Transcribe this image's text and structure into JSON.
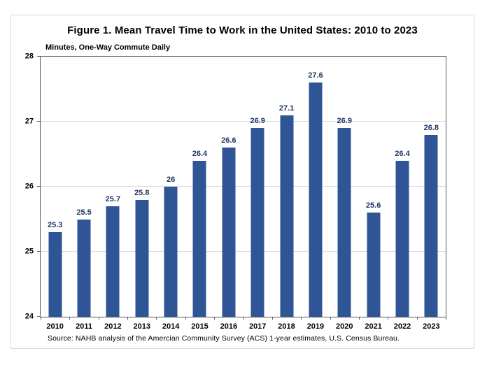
{
  "figure": {
    "title": "Figure 1. Mean Travel Time to Work in the United States: 2010 to 2023",
    "axis_note": "Minutes, One-Way Commute Daily",
    "source": "Source: NAHB analysis of the Amercian Community Survey (ACS) 1-year estimates, U.S. Census Bureau."
  },
  "chart_data": {
    "type": "bar",
    "title": "Figure 1. Mean Travel Time to Work in the United States: 2010 to 2023",
    "xlabel": "",
    "ylabel": "Minutes, One-Way Commute Daily",
    "categories": [
      "2010",
      "2011",
      "2012",
      "2013",
      "2014",
      "2015",
      "2016",
      "2017",
      "2018",
      "2019",
      "2020",
      "2021",
      "2022",
      "2023"
    ],
    "values": [
      25.3,
      25.5,
      25.7,
      25.8,
      26,
      26.4,
      26.6,
      26.9,
      27.1,
      27.6,
      26.9,
      25.6,
      26.4,
      26.8
    ],
    "data_labels": [
      "25.3",
      "25.5",
      "25.7",
      "25.8",
      "26",
      "26.4",
      "26.6",
      "26.9",
      "27.1",
      "27.6",
      "26.9",
      "25.6",
      "26.4",
      "26.8"
    ],
    "ylim": [
      24,
      28
    ],
    "yticks": [
      24,
      25,
      26,
      27,
      28
    ],
    "grid": true,
    "legend": "none",
    "colors": {
      "bar": "#2F5597",
      "data_label": "#1F3864",
      "gridline": "#d9d9d9",
      "axis_line": "#595959",
      "text": "#000000"
    }
  }
}
